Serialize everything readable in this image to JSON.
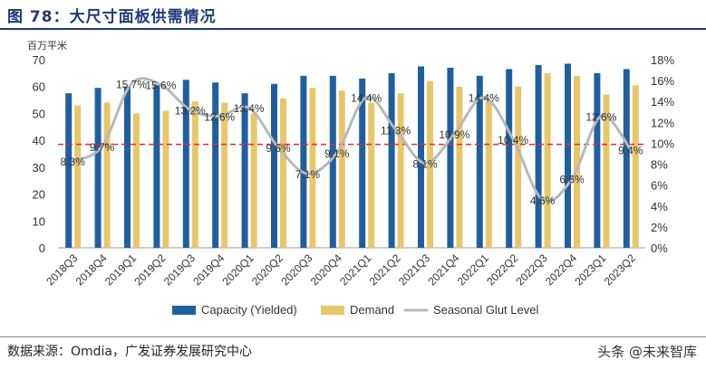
{
  "header": {
    "title": "图 78：大尺寸面板供需情况",
    "unit": "百万平米"
  },
  "footer": {
    "source": "数据来源：Omdia，广发证券发展研究中心",
    "watermark": "头条 @未来智库"
  },
  "colors": {
    "capacity": "#1f5fa0",
    "demand": "#e8c76a",
    "glut": "#b8b8b8",
    "refline": "#e03030"
  },
  "chart_data": {
    "type": "bar",
    "categories": [
      "2018Q3",
      "2018Q4",
      "2019Q1",
      "2019Q2",
      "2019Q3",
      "2019Q4",
      "2020Q1",
      "2020Q2",
      "2020Q3",
      "2020Q4",
      "2021Q1",
      "2021Q2",
      "2021Q3",
      "2021Q4",
      "2022Q1",
      "2022Q2",
      "2022Q3",
      "2022Q4",
      "2023Q1",
      "2023Q2"
    ],
    "series": [
      {
        "name": "Capacity (Yielded)",
        "type": "bar",
        "axis": "left",
        "values": [
          57.5,
          59.5,
          60.0,
          60.5,
          62.5,
          61.5,
          57.5,
          61.0,
          64.0,
          64.0,
          63.0,
          65.0,
          67.5,
          67.0,
          64.0,
          66.5,
          68.0,
          68.5,
          65.0,
          66.5
        ]
      },
      {
        "name": "Demand",
        "type": "bar",
        "axis": "left",
        "values": [
          53.0,
          54.0,
          50.0,
          51.0,
          54.5,
          54.0,
          50.0,
          55.5,
          59.5,
          58.5,
          54.0,
          57.5,
          62.0,
          60.0,
          54.5,
          60.0,
          65.0,
          64.0,
          57.0,
          60.5
        ]
      },
      {
        "name": "Seasonal Glut Level",
        "type": "line",
        "axis": "right",
        "values": [
          8.3,
          9.7,
          15.7,
          15.6,
          13.2,
          12.6,
          13.4,
          9.6,
          7.1,
          9.1,
          14.4,
          11.3,
          8.1,
          10.9,
          14.4,
          10.4,
          4.6,
          6.6,
          12.6,
          9.4
        ],
        "labels": [
          "8.3%",
          "9.7%",
          "15.7%",
          "15.6%",
          "13.2%",
          "12.6%",
          "13.4%",
          "9.6%",
          "7.1%",
          "9.1%",
          "14.4%",
          "11.3%",
          "8.1%",
          "10.9%",
          "14.4%",
          "10.4%",
          "4.6%",
          "6.6%",
          "12.6%",
          "9.4%"
        ]
      }
    ],
    "y_left": {
      "min": 0,
      "max": 70,
      "ticks": [
        "0",
        "10",
        "20",
        "30",
        "40",
        "50",
        "60",
        "70"
      ]
    },
    "y_right": {
      "min": 0,
      "max": 18,
      "ticks": [
        "0%",
        "2%",
        "4%",
        "6%",
        "8%",
        "10%",
        "12%",
        "14%",
        "16%",
        "18%"
      ]
    },
    "reference_line": {
      "axis": "left",
      "value": 38.5,
      "style": "dashed"
    },
    "legend": {
      "placement": "bottom",
      "entries": [
        "Capacity (Yielded)",
        "Demand",
        "Seasonal Glut Level"
      ]
    },
    "grid": false
  }
}
